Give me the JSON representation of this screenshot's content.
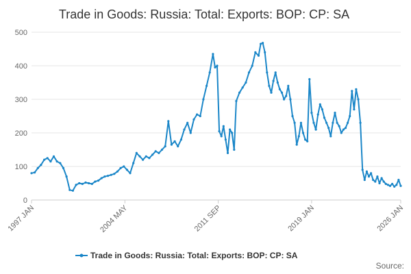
{
  "chart_data": {
    "type": "line",
    "title": "Trade in Goods: Russia: Total: Exports: BOP: CP: SA",
    "xlabel": "",
    "ylabel": "",
    "ylim": [
      0,
      500
    ],
    "yticks": [
      "0",
      "100",
      "200",
      "300",
      "400",
      "500"
    ],
    "xlim": [
      "1997-01",
      "2026-01"
    ],
    "xticks": [
      "1997 JAN",
      "2004 MAY",
      "2011 SEP",
      "2019 JAN",
      "2026 JAN"
    ],
    "grid": true,
    "legend_position": "bottom",
    "series": [
      {
        "name": "Trade in Goods: Russia: Total: Exports: BOP: CP: SA",
        "color": "#1a86c8",
        "points": [
          [
            "1997-01",
            80
          ],
          [
            "1997-04",
            82
          ],
          [
            "1997-07",
            95
          ],
          [
            "1997-10",
            105
          ],
          [
            "1998-01",
            120
          ],
          [
            "1998-04",
            125
          ],
          [
            "1998-07",
            115
          ],
          [
            "1998-10",
            130
          ],
          [
            "1999-01",
            115
          ],
          [
            "1999-04",
            110
          ],
          [
            "1999-07",
            95
          ],
          [
            "1999-10",
            70
          ],
          [
            "2000-01",
            30
          ],
          [
            "2000-04",
            28
          ],
          [
            "2000-07",
            45
          ],
          [
            "2000-10",
            50
          ],
          [
            "2001-01",
            48
          ],
          [
            "2001-04",
            52
          ],
          [
            "2001-07",
            50
          ],
          [
            "2001-10",
            48
          ],
          [
            "2002-01",
            55
          ],
          [
            "2002-04",
            58
          ],
          [
            "2002-07",
            65
          ],
          [
            "2002-10",
            70
          ],
          [
            "2003-01",
            72
          ],
          [
            "2003-04",
            75
          ],
          [
            "2003-07",
            78
          ],
          [
            "2003-10",
            85
          ],
          [
            "2004-01",
            95
          ],
          [
            "2004-04",
            100
          ],
          [
            "2004-07",
            90
          ],
          [
            "2004-10",
            80
          ],
          [
            "2005-01",
            110
          ],
          [
            "2005-04",
            140
          ],
          [
            "2005-07",
            130
          ],
          [
            "2005-10",
            120
          ],
          [
            "2006-01",
            130
          ],
          [
            "2006-04",
            125
          ],
          [
            "2006-07",
            135
          ],
          [
            "2006-10",
            145
          ],
          [
            "2007-01",
            140
          ],
          [
            "2007-04",
            150
          ],
          [
            "2007-07",
            160
          ],
          [
            "2007-10",
            235
          ],
          [
            "2008-01",
            165
          ],
          [
            "2008-04",
            175
          ],
          [
            "2008-07",
            160
          ],
          [
            "2008-10",
            180
          ],
          [
            "2009-01",
            210
          ],
          [
            "2009-04",
            230
          ],
          [
            "2009-07",
            200
          ],
          [
            "2009-10",
            240
          ],
          [
            "2010-01",
            255
          ],
          [
            "2010-04",
            250
          ],
          [
            "2010-07",
            300
          ],
          [
            "2010-10",
            340
          ],
          [
            "2011-01",
            380
          ],
          [
            "2011-04",
            435
          ],
          [
            "2011-06",
            395
          ],
          [
            "2011-08",
            400
          ],
          [
            "2011-10",
            205
          ],
          [
            "2011-12",
            190
          ],
          [
            "2012-02",
            220
          ],
          [
            "2012-04",
            180
          ],
          [
            "2012-06",
            140
          ],
          [
            "2012-08",
            210
          ],
          [
            "2012-10",
            200
          ],
          [
            "2012-12",
            150
          ],
          [
            "2013-02",
            295
          ],
          [
            "2013-05",
            320
          ],
          [
            "2013-08",
            335
          ],
          [
            "2013-11",
            350
          ],
          [
            "2014-02",
            380
          ],
          [
            "2014-05",
            400
          ],
          [
            "2014-08",
            440
          ],
          [
            "2014-11",
            430
          ],
          [
            "2015-01",
            465
          ],
          [
            "2015-03",
            468
          ],
          [
            "2015-05",
            440
          ],
          [
            "2015-07",
            380
          ],
          [
            "2015-09",
            340
          ],
          [
            "2015-11",
            320
          ],
          [
            "2016-01",
            355
          ],
          [
            "2016-03",
            380
          ],
          [
            "2016-05",
            350
          ],
          [
            "2016-07",
            330
          ],
          [
            "2016-09",
            320
          ],
          [
            "2016-11",
            300
          ],
          [
            "2017-01",
            310
          ],
          [
            "2017-03",
            340
          ],
          [
            "2017-05",
            300
          ],
          [
            "2017-07",
            250
          ],
          [
            "2017-09",
            230
          ],
          [
            "2017-11",
            165
          ],
          [
            "2018-01",
            190
          ],
          [
            "2018-03",
            230
          ],
          [
            "2018-05",
            200
          ],
          [
            "2018-07",
            180
          ],
          [
            "2018-09",
            175
          ],
          [
            "2018-11",
            360
          ],
          [
            "2019-01",
            260
          ],
          [
            "2019-03",
            230
          ],
          [
            "2019-05",
            210
          ],
          [
            "2019-07",
            255
          ],
          [
            "2019-09",
            285
          ],
          [
            "2019-11",
            270
          ],
          [
            "2020-01",
            245
          ],
          [
            "2020-03",
            230
          ],
          [
            "2020-05",
            215
          ],
          [
            "2020-07",
            190
          ],
          [
            "2020-09",
            230
          ],
          [
            "2020-11",
            260
          ],
          [
            "2021-01",
            230
          ],
          [
            "2021-03",
            220
          ],
          [
            "2021-05",
            200
          ],
          [
            "2021-07",
            210
          ],
          [
            "2021-09",
            215
          ],
          [
            "2021-11",
            230
          ],
          [
            "2022-01",
            250
          ],
          [
            "2022-03",
            325
          ],
          [
            "2022-05",
            270
          ],
          [
            "2022-07",
            330
          ],
          [
            "2022-09",
            300
          ],
          [
            "2022-11",
            230
          ],
          [
            "2023-01",
            90
          ],
          [
            "2023-03",
            60
          ],
          [
            "2023-05",
            85
          ],
          [
            "2023-07",
            70
          ],
          [
            "2023-09",
            80
          ],
          [
            "2023-11",
            60
          ],
          [
            "2024-01",
            55
          ],
          [
            "2024-03",
            70
          ],
          [
            "2024-05",
            50
          ],
          [
            "2024-07",
            65
          ],
          [
            "2024-09",
            55
          ],
          [
            "2024-11",
            48
          ],
          [
            "2025-01",
            45
          ],
          [
            "2025-03",
            42
          ],
          [
            "2025-05",
            48
          ],
          [
            "2025-07",
            40
          ],
          [
            "2025-09",
            45
          ],
          [
            "2025-11",
            60
          ],
          [
            "2026-01",
            42
          ]
        ]
      }
    ]
  },
  "legend": {
    "label": "Trade in Goods: Russia: Total: Exports: BOP: CP: SA"
  },
  "footer": {
    "source_label": "Source:"
  },
  "colors": {
    "series": "#1a86c8",
    "grid": "#e6e6e6",
    "text": "#333333"
  }
}
